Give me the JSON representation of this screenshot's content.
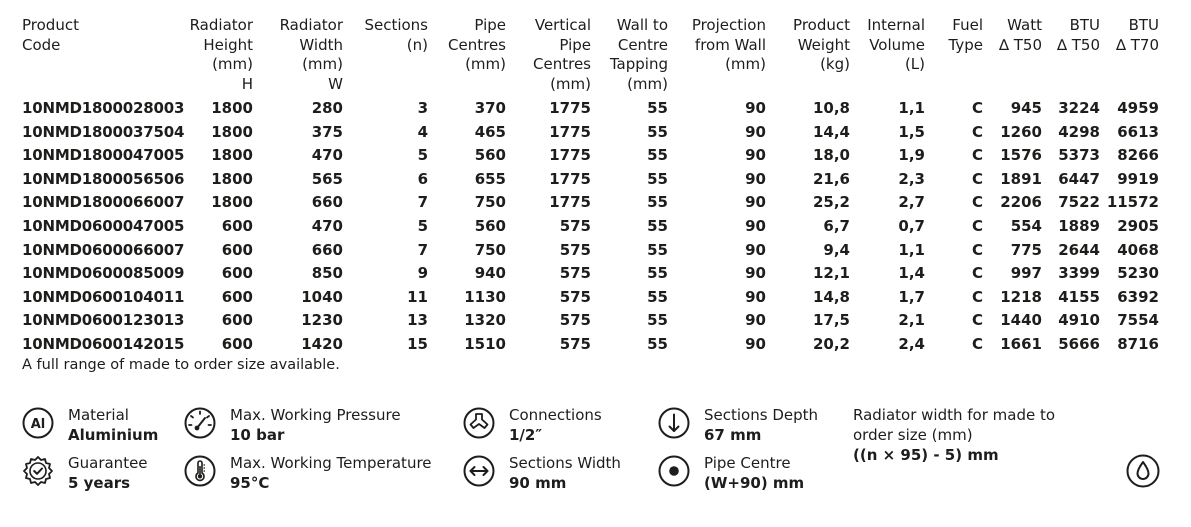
{
  "table": {
    "headers": [
      {
        "key": "code",
        "lines": [
          "Product",
          "Code"
        ]
      },
      {
        "key": "height",
        "lines": [
          "Radiator",
          "Height",
          "(mm)",
          "H"
        ]
      },
      {
        "key": "width",
        "lines": [
          "Radiator",
          "Width",
          "(mm)",
          "W"
        ]
      },
      {
        "key": "sections",
        "lines": [
          "Sections",
          "(n)"
        ]
      },
      {
        "key": "pipe_centres",
        "lines": [
          "Pipe",
          "Centres",
          "(mm)"
        ]
      },
      {
        "key": "vertical_pipe_centres",
        "lines": [
          "Vertical",
          "Pipe",
          "Centres",
          "(mm)"
        ]
      },
      {
        "key": "wall_to_centre",
        "lines": [
          "Wall to",
          "Centre",
          "Tapping",
          "(mm)"
        ]
      },
      {
        "key": "projection",
        "lines": [
          "Projection",
          "from Wall",
          "(mm)"
        ]
      },
      {
        "key": "weight",
        "lines": [
          "Product",
          "Weight",
          "(kg)"
        ]
      },
      {
        "key": "volume",
        "lines": [
          "Internal",
          "Volume",
          "(L)"
        ]
      },
      {
        "key": "fuel",
        "lines": [
          "Fuel",
          "Type"
        ]
      },
      {
        "key": "watt_t50",
        "lines": [
          "Watt",
          "∆ T50"
        ]
      },
      {
        "key": "btu_t50",
        "lines": [
          "BTU",
          "∆ T50"
        ]
      },
      {
        "key": "btu_t70",
        "lines": [
          "BTU",
          "∆ T70"
        ]
      }
    ],
    "rows": [
      [
        "10NMD1800028003",
        "1800",
        "280",
        "3",
        "370",
        "1775",
        "55",
        "90",
        "10,8",
        "1,1",
        "C",
        "945",
        "3224",
        "4959"
      ],
      [
        "10NMD1800037504",
        "1800",
        "375",
        "4",
        "465",
        "1775",
        "55",
        "90",
        "14,4",
        "1,5",
        "C",
        "1260",
        "4298",
        "6613"
      ],
      [
        "10NMD1800047005",
        "1800",
        "470",
        "5",
        "560",
        "1775",
        "55",
        "90",
        "18,0",
        "1,9",
        "C",
        "1576",
        "5373",
        "8266"
      ],
      [
        "10NMD1800056506",
        "1800",
        "565",
        "6",
        "655",
        "1775",
        "55",
        "90",
        "21,6",
        "2,3",
        "C",
        "1891",
        "6447",
        "9919"
      ],
      [
        "10NMD1800066007",
        "1800",
        "660",
        "7",
        "750",
        "1775",
        "55",
        "90",
        "25,2",
        "2,7",
        "C",
        "2206",
        "7522",
        "11572"
      ],
      [
        "10NMD0600047005",
        "600",
        "470",
        "5",
        "560",
        "575",
        "55",
        "90",
        "6,7",
        "0,7",
        "C",
        "554",
        "1889",
        "2905"
      ],
      [
        "10NMD0600066007",
        "600",
        "660",
        "7",
        "750",
        "575",
        "55",
        "90",
        "9,4",
        "1,1",
        "C",
        "775",
        "2644",
        "4068"
      ],
      [
        "10NMD0600085009",
        "600",
        "850",
        "9",
        "940",
        "575",
        "55",
        "90",
        "12,1",
        "1,4",
        "C",
        "997",
        "3399",
        "5230"
      ],
      [
        "10NMD0600104011",
        "600",
        "1040",
        "11",
        "1130",
        "575",
        "55",
        "90",
        "14,8",
        "1,7",
        "C",
        "1218",
        "4155",
        "6392"
      ],
      [
        "10NMD0600123013",
        "600",
        "1230",
        "13",
        "1320",
        "575",
        "55",
        "90",
        "17,5",
        "2,1",
        "C",
        "1440",
        "4910",
        "7554"
      ],
      [
        "10NMD0600142015",
        "600",
        "1420",
        "15",
        "1510",
        "575",
        "55",
        "90",
        "20,2",
        "2,4",
        "C",
        "1661",
        "5666",
        "8716"
      ]
    ],
    "footnote": "A full range of made to order size available."
  },
  "features": [
    {
      "id": "material",
      "icon": "aluminium-icon",
      "label": "Material",
      "value": "Aluminium",
      "icon_text": "Al"
    },
    {
      "id": "guarantee",
      "icon": "guarantee-badge-icon",
      "label": "Guarantee",
      "value": "5 years"
    },
    {
      "id": "pressure",
      "icon": "pressure-gauge-icon",
      "label": "Max. Working Pressure",
      "value": "10 bar"
    },
    {
      "id": "temperature",
      "icon": "thermometer-icon",
      "label": "Max. Working Temperature",
      "value": "95°C"
    },
    {
      "id": "connections",
      "icon": "connections-icon",
      "label": "Connections",
      "value": "1/2″"
    },
    {
      "id": "sections_width",
      "icon": "horizontal-arrows-icon",
      "label": "Sections Width",
      "value": "90 mm"
    },
    {
      "id": "sections_depth",
      "icon": "down-arrow-icon",
      "label": "Sections Depth",
      "value": "67 mm"
    },
    {
      "id": "pipe_centre",
      "icon": "pipe-centre-dot-icon",
      "label": "Pipe Centre",
      "value": "(W+90) mm"
    }
  ],
  "made_to_order": {
    "label_lines": [
      "Radiator width for made to",
      "order size (mm)"
    ],
    "formula": "((n × 95) - 5) mm"
  },
  "drop_icon": "water-drop-icon",
  "colors": {
    "text": "#1d1d1b",
    "background": "#ffffff"
  }
}
